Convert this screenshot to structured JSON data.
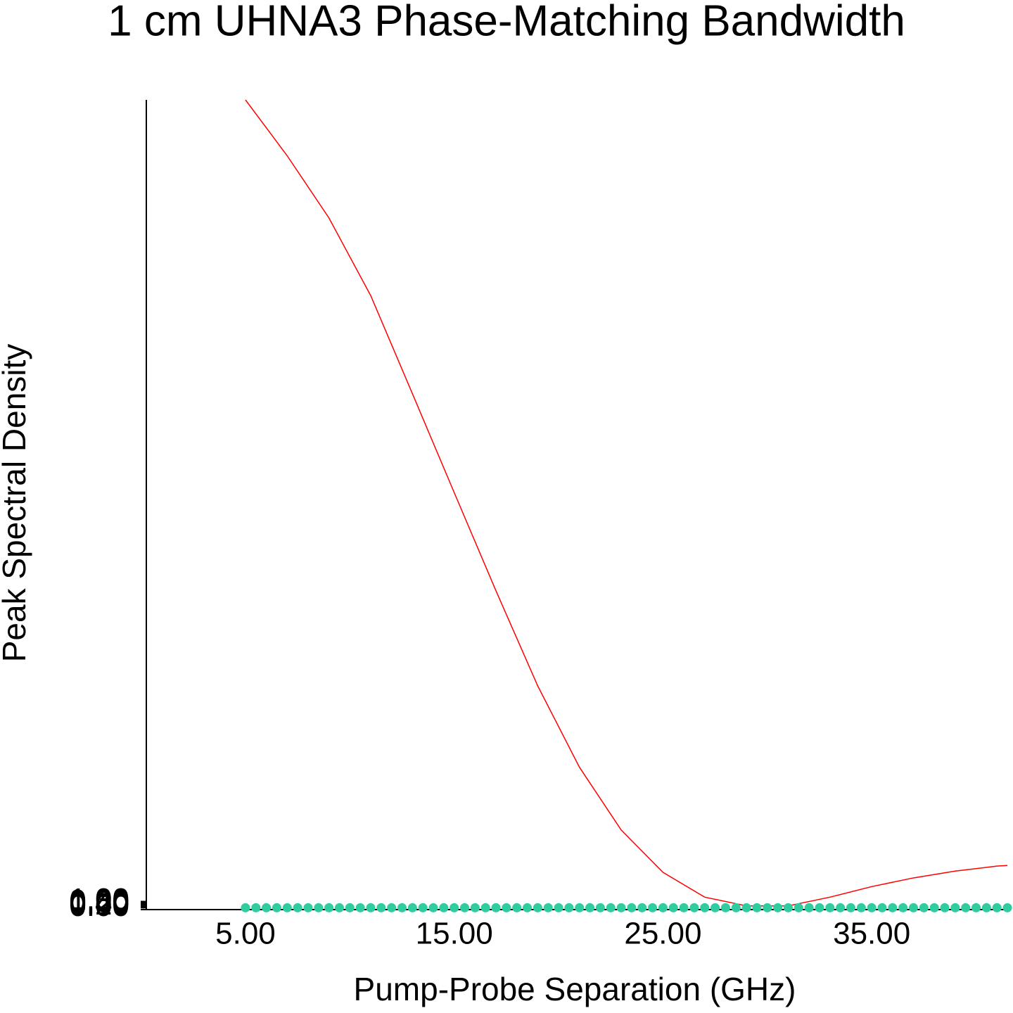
{
  "chart_data": {
    "type": "line",
    "title": "1 cm UHNA3 Phase-Matching Bandwidth",
    "x_label": "Pump-Probe Separation (GHz)",
    "y_label": "Peak Spectral Density",
    "xlim": [
      0.25,
      41.6
    ],
    "ylim": [
      -0.3,
      130
    ],
    "xticks": [
      {
        "value": 5,
        "label": "5.00"
      },
      {
        "value": 15,
        "label": "15.00"
      },
      {
        "value": 25,
        "label": "25.00"
      },
      {
        "value": 35,
        "label": "35.00"
      }
    ],
    "yticks": [
      {
        "value": 0,
        "label": "0.00"
      },
      {
        "value": 0.2,
        "label": "0.20"
      },
      {
        "value": 0.4,
        "label": "0.40"
      },
      {
        "value": 0.6,
        "label": "0.60"
      },
      {
        "value": 0.8,
        "label": "0.80"
      },
      {
        "value": 1,
        "label": "1.00"
      }
    ],
    "series": [
      {
        "kind": "line",
        "color": "#ff0000",
        "x": [
          5,
          7,
          9,
          11,
          13,
          15,
          17,
          19,
          21,
          23,
          25,
          27,
          29,
          31,
          33,
          35,
          37,
          39,
          41,
          41.5
        ],
        "values": [
          130,
          121,
          111,
          98.5,
          82.7,
          66.8,
          51,
          35.7,
          22.6,
          12.5,
          5.7,
          1.7,
          0.3,
          0.3,
          1.7,
          3.4,
          4.8,
          5.9,
          6.7,
          6.8
        ]
      },
      {
        "kind": "scatter",
        "color": "#2ecc9e",
        "x": [
          5,
          5.5,
          6,
          6.5,
          7,
          7.5,
          8,
          8.5,
          9,
          9.5,
          10,
          10.5,
          11,
          11.5,
          12,
          12.5,
          13,
          13.5,
          14,
          14.5,
          15,
          15.5,
          16,
          16.5,
          17,
          17.5,
          18,
          18.5,
          19,
          19.5,
          20,
          20.5,
          21,
          21.5,
          22,
          22.5,
          23,
          23.5,
          24,
          24.5,
          25,
          25.5,
          26,
          26.5,
          27,
          27.5,
          28,
          28.5,
          29,
          29.5,
          30,
          30.5,
          31,
          31.5,
          32,
          32.5,
          33,
          33.5,
          34,
          34.5,
          35,
          35.5,
          36,
          36.5,
          37,
          37.5,
          38,
          38.5,
          39,
          39.5,
          40,
          40.5,
          41,
          41.5
        ],
        "values": [
          0,
          0,
          0,
          0,
          0,
          0,
          0,
          0,
          0,
          0,
          0,
          0,
          0,
          0,
          0,
          0,
          0,
          0,
          0,
          0,
          0,
          0,
          0,
          0,
          0,
          0,
          0,
          0,
          0,
          0,
          0,
          0,
          0,
          0,
          0,
          0,
          0,
          0,
          0,
          0,
          0,
          0,
          0,
          0,
          0,
          0,
          0,
          0,
          0,
          0,
          0,
          0,
          0,
          0,
          0,
          0,
          0,
          0,
          0,
          0,
          0,
          0,
          0,
          0,
          0,
          0,
          0,
          0,
          0,
          0,
          0,
          0,
          0,
          0
        ]
      }
    ]
  }
}
